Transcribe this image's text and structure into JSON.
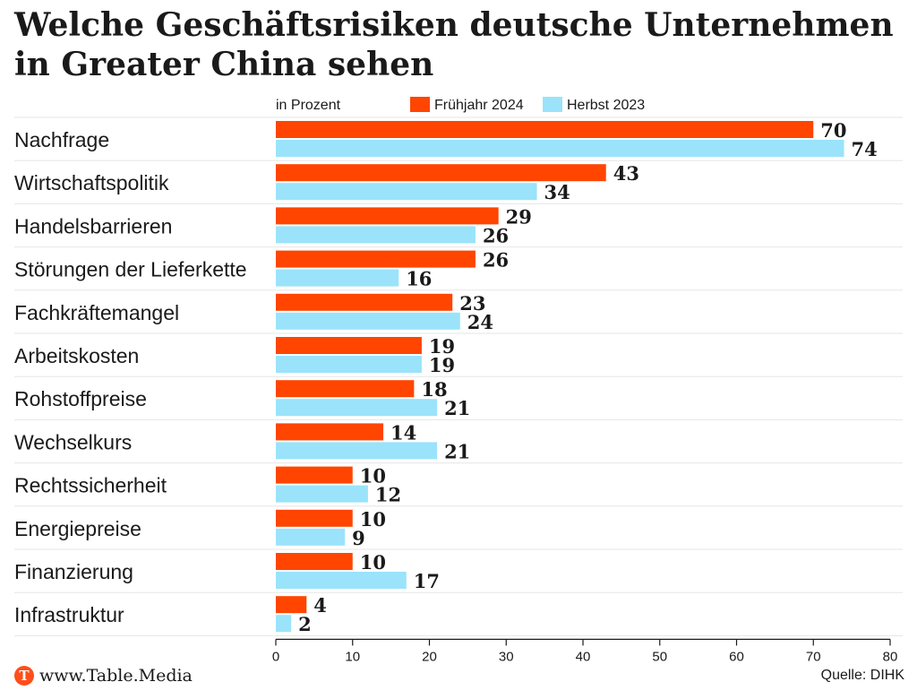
{
  "chart_data": {
    "type": "bar",
    "orientation": "horizontal",
    "title": "Welche Geschäftsrisiken deutsche Unternehmen in Greater China sehen",
    "unit_label": "in Prozent",
    "categories": [
      "Nachfrage",
      "Wirtschaftspolitik",
      "Handelsbarrieren",
      "Störungen der Lieferkette",
      "Fachkräftemangel",
      "Arbeitskosten",
      "Rohstoffpreise",
      "Wechselkurs",
      "Rechtssicherheit",
      "Energiepreise",
      "Finanzierung",
      "Infrastruktur"
    ],
    "series": [
      {
        "name": "Frühjahr 2024",
        "color": "#ff4500",
        "values": [
          70,
          43,
          29,
          26,
          23,
          19,
          18,
          14,
          10,
          10,
          10,
          4
        ]
      },
      {
        "name": "Herbst 2023",
        "color": "#9ae3fb",
        "values": [
          74,
          34,
          26,
          16,
          24,
          19,
          21,
          21,
          12,
          9,
          17,
          2
        ]
      }
    ],
    "xlim": [
      0,
      80
    ],
    "xticks": [
      0,
      10,
      20,
      30,
      40,
      50,
      60,
      70,
      80
    ],
    "legend_position": "top",
    "grid": false
  },
  "footer": {
    "logo_letter": "T",
    "logo_text": "www.Table.Media",
    "source": "Quelle: DIHK"
  }
}
